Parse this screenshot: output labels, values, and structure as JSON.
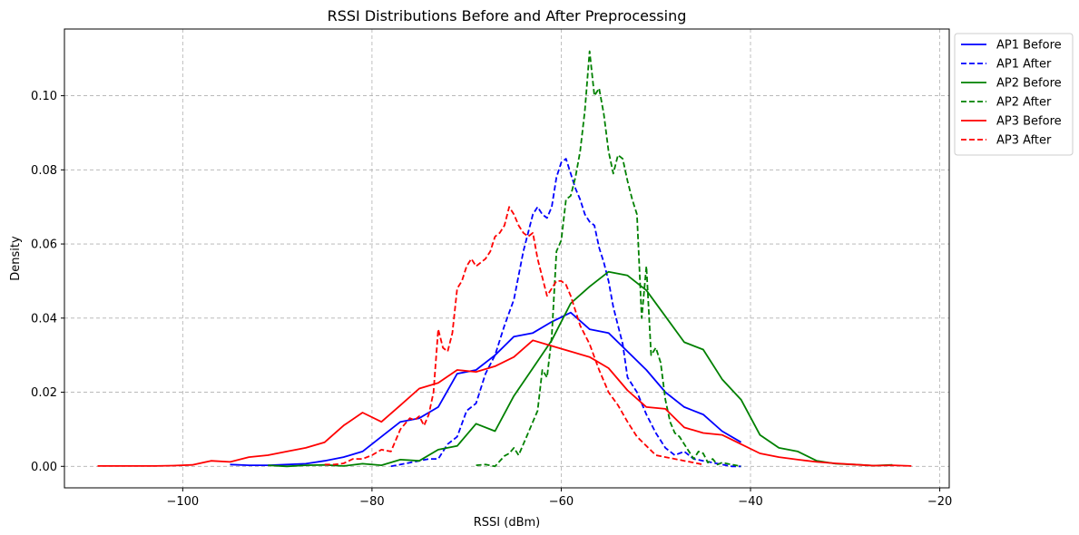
{
  "chart_data": {
    "type": "line",
    "title": "RSSI Distributions Before and After Preprocessing",
    "xlabel": "RSSI (dBm)",
    "ylabel": "Density",
    "xlim": [
      -112.5,
      -19
    ],
    "ylim": [
      -0.0058,
      0.118
    ],
    "xticks": [
      -100,
      -80,
      -60,
      -40,
      -20
    ],
    "xtick_labels": [
      "−100",
      "−80",
      "−60",
      "−40",
      "−20"
    ],
    "yticks": [
      0.0,
      0.02,
      0.04,
      0.06,
      0.08,
      0.1
    ],
    "ytick_labels": [
      "0.00",
      "0.02",
      "0.04",
      "0.06",
      "0.08",
      "0.10"
    ],
    "grid": true,
    "legend_position": "outside-top-right",
    "series": [
      {
        "name": "AP1 Before",
        "color": "#0000ff",
        "dash": "solid",
        "x": [
          -95,
          -93,
          -91,
          -89,
          -87,
          -85,
          -83,
          -81,
          -79,
          -77,
          -75,
          -73,
          -71,
          -69,
          -67,
          -65,
          -63,
          -61,
          -59,
          -57,
          -55,
          -53,
          -51,
          -49,
          -47,
          -45,
          -43,
          -41
        ],
        "y": [
          0.0005,
          0.0003,
          0.0003,
          0.0005,
          0.0007,
          0.0015,
          0.0025,
          0.004,
          0.008,
          0.012,
          0.013,
          0.016,
          0.025,
          0.026,
          0.03,
          0.035,
          0.036,
          0.039,
          0.0415,
          0.037,
          0.036,
          0.031,
          0.026,
          0.02,
          0.016,
          0.014,
          0.0095,
          0.0065
        ]
      },
      {
        "name": "AP1 After",
        "color": "#0000ff",
        "dash": "dashed",
        "x": [
          -78,
          -77,
          -76,
          -75,
          -74,
          -73,
          -72,
          -71,
          -70,
          -69,
          -68,
          -67,
          -66,
          -65,
          -64,
          -63,
          -62.5,
          -62,
          -61.5,
          -61,
          -60.5,
          -60,
          -59.5,
          -59,
          -58.5,
          -58,
          -57.5,
          -57,
          -56.5,
          -56,
          -55.5,
          -55,
          -54.5,
          -54,
          -53.5,
          -53,
          -52.5,
          -52,
          -51,
          -50,
          -49,
          -48,
          -47,
          -46,
          -45,
          -44,
          -43,
          -42,
          -41
        ],
        "y": [
          0.0,
          0.0005,
          0.001,
          0.0015,
          0.002,
          0.002,
          0.006,
          0.008,
          0.015,
          0.017,
          0.025,
          0.03,
          0.038,
          0.045,
          0.058,
          0.068,
          0.07,
          0.068,
          0.067,
          0.07,
          0.078,
          0.082,
          0.083,
          0.079,
          0.075,
          0.072,
          0.068,
          0.066,
          0.065,
          0.059,
          0.055,
          0.05,
          0.043,
          0.038,
          0.033,
          0.024,
          0.022,
          0.02,
          0.014,
          0.009,
          0.005,
          0.003,
          0.004,
          0.002,
          0.0015,
          0.001,
          0.0005,
          0.0,
          0.0
        ]
      },
      {
        "name": "AP2 Before",
        "color": "#008000",
        "dash": "solid",
        "x": [
          -91,
          -89,
          -87,
          -85,
          -83,
          -81,
          -79,
          -77,
          -75,
          -73,
          -71,
          -69,
          -67,
          -65,
          -63,
          -61,
          -59,
          -57,
          -55,
          -53,
          -51,
          -49,
          -47,
          -45,
          -43,
          -41,
          -39,
          -37,
          -35,
          -33,
          -31,
          -29,
          -27,
          -25
        ],
        "y": [
          0.0003,
          0.0,
          0.0003,
          0.0004,
          0.0001,
          0.0007,
          0.0003,
          0.0018,
          0.0015,
          0.0045,
          0.0055,
          0.0115,
          0.0095,
          0.019,
          0.0265,
          0.034,
          0.044,
          0.0485,
          0.0525,
          0.0515,
          0.0475,
          0.0405,
          0.0335,
          0.0315,
          0.0235,
          0.018,
          0.0085,
          0.005,
          0.004,
          0.0015,
          0.0007,
          0.0005,
          0.0002,
          0.0004
        ]
      },
      {
        "name": "AP2 After",
        "color": "#008000",
        "dash": "dashed",
        "x": [
          -69,
          -68,
          -67,
          -66,
          -65.5,
          -65,
          -64.5,
          -64,
          -63.5,
          -63,
          -62.5,
          -62,
          -61.5,
          -61,
          -60.5,
          -60,
          -59.5,
          -59,
          -58.5,
          -58,
          -57.5,
          -57,
          -56.5,
          -56,
          -55.5,
          -55,
          -54.5,
          -54,
          -53.5,
          -53,
          -52.5,
          -52,
          -51.5,
          -51,
          -50.5,
          -50,
          -49.5,
          -49,
          -48.5,
          -48,
          -47.5,
          -47,
          -46.5,
          -46,
          -45.5,
          -45,
          -44.5,
          -44,
          -43.5,
          -43,
          -42,
          -41
        ],
        "y": [
          0.0003,
          0.0005,
          0.0,
          0.0028,
          0.0035,
          0.005,
          0.003,
          0.006,
          0.009,
          0.012,
          0.015,
          0.026,
          0.024,
          0.035,
          0.058,
          0.061,
          0.072,
          0.073,
          0.078,
          0.085,
          0.096,
          0.112,
          0.1,
          0.102,
          0.095,
          0.085,
          0.079,
          0.084,
          0.083,
          0.077,
          0.072,
          0.068,
          0.04,
          0.054,
          0.03,
          0.032,
          0.028,
          0.018,
          0.012,
          0.009,
          0.008,
          0.006,
          0.004,
          0.002,
          0.004,
          0.0035,
          0.001,
          0.002,
          0.0005,
          0.001,
          0.0005,
          0.0
        ]
      },
      {
        "name": "AP3 Before",
        "color": "#ff0000",
        "dash": "solid",
        "x": [
          -109,
          -107,
          -105,
          -103,
          -101,
          -99,
          -97,
          -95,
          -93,
          -91,
          -89,
          -87,
          -85,
          -83,
          -81,
          -79,
          -77,
          -75,
          -73,
          -71,
          -69,
          -67,
          -65,
          -63,
          -61,
          -59,
          -57,
          -55,
          -53,
          -51,
          -49,
          -47,
          -45,
          -43,
          -41,
          -39,
          -37,
          -35,
          -33,
          -31,
          -29,
          -27,
          -25,
          -23
        ],
        "y": [
          0.0001,
          0.0001,
          0.0001,
          0.0001,
          0.0002,
          0.0004,
          0.0015,
          0.0012,
          0.0025,
          0.003,
          0.004,
          0.005,
          0.0065,
          0.011,
          0.0145,
          0.012,
          0.0165,
          0.021,
          0.0225,
          0.026,
          0.0255,
          0.027,
          0.0295,
          0.034,
          0.0325,
          0.031,
          0.0295,
          0.0265,
          0.0205,
          0.016,
          0.0155,
          0.0105,
          0.009,
          0.0085,
          0.006,
          0.0035,
          0.0025,
          0.0018,
          0.0012,
          0.0008,
          0.0005,
          0.0002,
          0.0003,
          0.0001
        ]
      },
      {
        "name": "AP3 After",
        "color": "#ff0000",
        "dash": "dashed",
        "x": [
          -85,
          -84,
          -83,
          -82,
          -81,
          -80,
          -79,
          -78,
          -77,
          -76,
          -75.5,
          -75,
          -74.5,
          -74,
          -73.5,
          -73,
          -72.5,
          -72,
          -71.5,
          -71,
          -70.5,
          -70,
          -69.5,
          -69,
          -68.5,
          -68,
          -67.5,
          -67,
          -66.5,
          -66,
          -65.5,
          -65,
          -64.5,
          -64,
          -63.5,
          -63,
          -62.5,
          -62,
          -61.5,
          -61,
          -60.5,
          -60,
          -59.5,
          -59,
          -58,
          -57,
          -56,
          -55,
          -54,
          -53,
          -52,
          -51,
          -50,
          -49,
          -48,
          -47,
          -46,
          -45
        ],
        "y": [
          0.0005,
          0.0005,
          0.0008,
          0.002,
          0.002,
          0.003,
          0.0045,
          0.004,
          0.01,
          0.013,
          0.0125,
          0.0135,
          0.011,
          0.014,
          0.02,
          0.037,
          0.032,
          0.031,
          0.036,
          0.048,
          0.05,
          0.054,
          0.056,
          0.054,
          0.055,
          0.056,
          0.058,
          0.062,
          0.063,
          0.065,
          0.07,
          0.068,
          0.065,
          0.063,
          0.062,
          0.063,
          0.056,
          0.051,
          0.046,
          0.048,
          0.05,
          0.05,
          0.049,
          0.046,
          0.038,
          0.033,
          0.026,
          0.02,
          0.0165,
          0.012,
          0.008,
          0.0055,
          0.003,
          0.0025,
          0.002,
          0.0015,
          0.001,
          0.0005
        ]
      }
    ]
  }
}
